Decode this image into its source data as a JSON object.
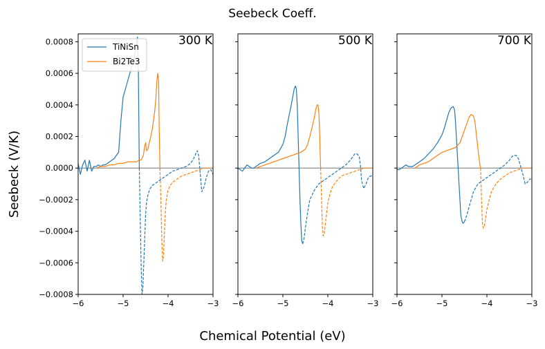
{
  "figure": {
    "suptitle": "Seebeck Coeff.",
    "xlabel": "Chemical Potential (eV)",
    "ylabel": "Seebeck (V/K)"
  },
  "colors": {
    "TiNiSn": "#1f77b4",
    "Bi2Te3": "#ff7f0e",
    "zero_line": "#808080"
  },
  "legend": {
    "placement": "upper-left",
    "entries": [
      "TiNiSn",
      "Bi2Te3"
    ]
  },
  "chart_data": [
    {
      "type": "line",
      "title": "300 K",
      "xlim": [
        -6,
        -3
      ],
      "ylim": [
        -0.0008,
        0.00085
      ],
      "xticks": [
        "−6",
        "−5",
        "−4",
        "−3"
      ],
      "yticks": [
        "−0.0008",
        "−0.0006",
        "−0.0004",
        "−0.0002",
        "0.0000",
        "0.0002",
        "0.0004",
        "0.0006",
        "0.0008"
      ],
      "series": [
        {
          "name": "TiNiSn",
          "style": "solid",
          "x": [
            -6.0,
            -5.95,
            -5.9,
            -5.85,
            -5.8,
            -5.75,
            -5.7,
            -5.65,
            -5.6,
            -5.55,
            -5.5,
            -5.45,
            -5.4,
            -5.35,
            -5.3,
            -5.25,
            -5.2,
            -5.15,
            -5.1,
            -5.05,
            -5.0,
            -4.95,
            -4.9,
            -4.85,
            -4.8,
            -4.75,
            -4.72,
            -4.7,
            -4.68,
            -4.66,
            -4.64
          ],
          "y": [
            3e-05,
            -4e-05,
            2e-05,
            5e-05,
            -2e-05,
            5e-05,
            -2e-05,
            1e-05,
            1e-05,
            2e-05,
            1e-05,
            2e-05,
            2e-05,
            3e-05,
            4e-05,
            5e-05,
            6e-05,
            8e-05,
            0.0001,
            0.0003,
            0.00045,
            0.0005,
            0.00055,
            0.0006,
            0.00065,
            0.0007,
            0.00075,
            0.0008,
            0.00083,
            0.0006,
            0.0
          ]
        },
        {
          "name": "TiNiSn",
          "style": "dashed",
          "x": [
            -4.64,
            -4.62,
            -4.6,
            -4.58,
            -4.56,
            -4.54,
            -4.52,
            -4.5,
            -4.48,
            -4.45,
            -4.4,
            -4.35,
            -4.3,
            -4.25,
            -4.2,
            -4.15,
            -4.1,
            -4.0,
            -3.9,
            -3.8,
            -3.7,
            -3.6,
            -3.5,
            -3.45,
            -3.4,
            -3.37,
            -3.35,
            -3.32,
            -3.28,
            -3.25,
            -3.2,
            -3.15,
            -3.1,
            -3.05,
            -3.0
          ],
          "y": [
            0.0,
            -0.0003,
            -0.0006,
            -0.0008,
            -0.00075,
            -0.0006,
            -0.00045,
            -0.0003,
            -0.00022,
            -0.00017,
            -0.00013,
            -0.00011,
            -0.0001,
            -9e-05,
            -8e-05,
            -7e-05,
            -6e-05,
            -4e-05,
            -2e-05,
            -1e-05,
            0.0,
            1e-05,
            3e-05,
            5e-05,
            8e-05,
            0.0001,
            0.00011,
            8e-05,
            -5e-05,
            -0.00015,
            -0.00012,
            -6e-05,
            -2e-05,
            -1e-05,
            -4e-05
          ]
        },
        {
          "name": "Bi2Te3",
          "style": "solid",
          "x": [
            -5.6,
            -5.5,
            -5.4,
            -5.3,
            -5.2,
            -5.1,
            -5.0,
            -4.9,
            -4.8,
            -4.7,
            -4.65,
            -4.6,
            -4.55,
            -4.52,
            -4.5,
            -4.48,
            -4.45,
            -4.42,
            -4.4,
            -4.35,
            -4.3,
            -4.27,
            -4.25,
            -4.23,
            -4.21,
            -4.2,
            -4.18
          ],
          "y": [
            0.0,
            1e-05,
            1e-05,
            2e-05,
            2e-05,
            3e-05,
            3e-05,
            4e-05,
            4e-05,
            4e-05,
            5e-05,
            5e-05,
            8e-05,
            0.00014,
            0.00016,
            0.00011,
            0.00012,
            0.00016,
            0.00018,
            0.00025,
            0.00035,
            0.00045,
            0.00055,
            0.0006,
            0.00055,
            0.0003,
            0.0
          ]
        },
        {
          "name": "Bi2Te3",
          "style": "dashed",
          "x": [
            -4.18,
            -4.16,
            -4.14,
            -4.12,
            -4.1,
            -4.08,
            -4.06,
            -4.04,
            -4.0,
            -3.95,
            -3.9,
            -3.8,
            -3.7,
            -3.6,
            -3.5,
            -3.4,
            -3.3,
            -3.2,
            -3.1,
            -3.0
          ],
          "y": [
            0.0,
            -0.0002,
            -0.00045,
            -0.00059,
            -0.00055,
            -0.0004,
            -0.00028,
            -0.0002,
            -0.00014,
            -0.00011,
            -9e-05,
            -7e-05,
            -5e-05,
            -4e-05,
            -3e-05,
            -2e-05,
            -1e-05,
            0.0,
            0.0,
            0.0
          ]
        }
      ]
    },
    {
      "type": "line",
      "title": "500 K",
      "xlim": [
        -6,
        -3
      ],
      "ylim": [
        -0.0008,
        0.00085
      ],
      "xticks": [
        "−6",
        "−5",
        "−4",
        "−3"
      ],
      "series": [
        {
          "name": "TiNiSn",
          "style": "solid",
          "x": [
            -6.0,
            -5.95,
            -5.9,
            -5.85,
            -5.8,
            -5.75,
            -5.7,
            -5.65,
            -5.6,
            -5.5,
            -5.4,
            -5.3,
            -5.2,
            -5.1,
            -5.0,
            -4.95,
            -4.9,
            -4.85,
            -4.8,
            -4.75,
            -4.72,
            -4.7,
            -4.68,
            -4.66,
            -4.64,
            -4.62,
            -4.6,
            -4.58,
            -4.56
          ],
          "y": [
            0.0,
            -1e-05,
            -2e-05,
            0.0,
            2e-05,
            1e-05,
            0.0,
            0.0,
            1e-05,
            3e-05,
            4e-05,
            6e-05,
            8e-05,
            0.0001,
            0.00015,
            0.0002,
            0.00028,
            0.00035,
            0.00042,
            0.0005,
            0.00052,
            0.0005,
            0.0004,
            0.0002,
            0.0,
            -0.0002,
            -0.00035,
            -0.00046,
            -0.00048
          ]
        },
        {
          "name": "TiNiSn",
          "style": "dashed",
          "x": [
            -4.56,
            -4.53,
            -4.5,
            -4.45,
            -4.4,
            -4.3,
            -4.2,
            -4.1,
            -4.0,
            -3.9,
            -3.8,
            -3.7,
            -3.6,
            -3.5,
            -3.45,
            -3.4,
            -3.35,
            -3.3,
            -3.27,
            -3.25,
            -3.2,
            -3.15,
            -3.1,
            -3.05,
            -3.0
          ],
          "y": [
            -0.00048,
            -0.00045,
            -0.00038,
            -0.00028,
            -0.0002,
            -0.00014,
            -0.0001,
            -8e-05,
            -6e-05,
            -4e-05,
            -2e-05,
            0.0,
            2e-05,
            5e-05,
            7e-05,
            9e-05,
            9e-05,
            7e-05,
            0.0,
            -8e-05,
            -0.00013,
            -0.0001,
            -6e-05,
            -5e-05,
            -5e-05
          ]
        },
        {
          "name": "Bi2Te3",
          "style": "solid",
          "x": [
            -5.6,
            -5.5,
            -5.4,
            -5.3,
            -5.2,
            -5.1,
            -5.0,
            -4.9,
            -4.8,
            -4.7,
            -4.6,
            -4.5,
            -4.45,
            -4.4,
            -4.35,
            -4.3,
            -4.27,
            -4.24,
            -4.22,
            -4.2,
            -4.19,
            -4.18,
            -4.17,
            -4.16
          ],
          "y": [
            0.0,
            1e-05,
            2e-05,
            3e-05,
            4e-05,
            5e-05,
            6e-05,
            7e-05,
            8e-05,
            9e-05,
            0.0001,
            0.00012,
            0.00015,
            0.0002,
            0.00026,
            0.00032,
            0.00037,
            0.0004,
            0.0004,
            0.00035,
            0.0003,
            0.0002,
            0.0001,
            0.0
          ]
        },
        {
          "name": "Bi2Te3",
          "style": "dashed",
          "x": [
            -4.16,
            -4.14,
            -4.12,
            -4.1,
            -4.08,
            -4.05,
            -4.0,
            -3.95,
            -3.9,
            -3.8,
            -3.7,
            -3.6,
            -3.5,
            -3.4,
            -3.3,
            -3.2,
            -3.1,
            -3.0
          ],
          "y": [
            0.0,
            -0.0002,
            -0.00038,
            -0.00043,
            -0.00042,
            -0.00034,
            -0.00022,
            -0.00016,
            -0.00012,
            -8e-05,
            -5e-05,
            -4e-05,
            -3e-05,
            -2e-05,
            -1e-05,
            0.0,
            0.0,
            0.0
          ]
        }
      ]
    },
    {
      "type": "line",
      "title": "700 K",
      "xlim": [
        -6,
        -3
      ],
      "ylim": [
        -0.0008,
        0.00085
      ],
      "xticks": [
        "−6",
        "−5",
        "−4",
        "−3"
      ],
      "series": [
        {
          "name": "TiNiSn",
          "style": "solid",
          "x": [
            -6.0,
            -5.95,
            -5.9,
            -5.85,
            -5.8,
            -5.75,
            -5.7,
            -5.65,
            -5.6,
            -5.5,
            -5.4,
            -5.3,
            -5.2,
            -5.1,
            -5.0,
            -4.95,
            -4.9,
            -4.85,
            -4.8,
            -4.75,
            -4.72,
            -4.7,
            -4.68,
            -4.66,
            -4.64,
            -4.62,
            -4.6,
            -4.58,
            -4.55,
            -4.53,
            -4.5
          ],
          "y": [
            -1e-05,
            -1e-05,
            0.0,
            1e-05,
            2e-05,
            1e-05,
            1e-05,
            1e-05,
            2e-05,
            4e-05,
            6e-05,
            9e-05,
            0.00012,
            0.00016,
            0.00021,
            0.00025,
            0.0003,
            0.00035,
            0.00038,
            0.00039,
            0.00037,
            0.0003,
            0.0002,
            0.0001,
            0.0,
            -0.0001,
            -0.0002,
            -0.0003,
            -0.00034,
            -0.00035,
            -0.00034
          ]
        },
        {
          "name": "TiNiSn",
          "style": "dashed",
          "x": [
            -4.5,
            -4.45,
            -4.4,
            -4.35,
            -4.3,
            -4.2,
            -4.1,
            -4.0,
            -3.9,
            -3.8,
            -3.7,
            -3.6,
            -3.5,
            -3.45,
            -3.4,
            -3.35,
            -3.3,
            -3.25,
            -3.2,
            -3.15,
            -3.1,
            -3.05,
            -3.0
          ],
          "y": [
            -0.00034,
            -0.0003,
            -0.00025,
            -0.0002,
            -0.00015,
            -0.0001,
            -8e-05,
            -6e-05,
            -4e-05,
            -2e-05,
            0.0,
            2e-05,
            5e-05,
            7e-05,
            8e-05,
            8e-05,
            6e-05,
            1e-05,
            -4e-05,
            -0.0001,
            -9e-05,
            -7e-05,
            -7e-05
          ]
        },
        {
          "name": "Bi2Te3",
          "style": "solid",
          "x": [
            -5.6,
            -5.5,
            -5.4,
            -5.3,
            -5.2,
            -5.1,
            -5.0,
            -4.9,
            -4.8,
            -4.7,
            -4.6,
            -4.55,
            -4.5,
            -4.45,
            -4.4,
            -4.35,
            -4.3,
            -4.27,
            -4.25,
            -4.23,
            -4.21,
            -4.19,
            -4.17,
            -4.15,
            -4.14
          ],
          "y": [
            0.0,
            2e-05,
            3e-05,
            4e-05,
            6e-05,
            8e-05,
            0.0001,
            0.00011,
            0.00012,
            0.00013,
            0.00016,
            0.0002,
            0.00024,
            0.00028,
            0.00032,
            0.00034,
            0.00033,
            0.0003,
            0.00025,
            0.0002,
            0.00015,
            0.0001,
            5e-05,
            1e-05,
            0.0
          ]
        },
        {
          "name": "Bi2Te3",
          "style": "dashed",
          "x": [
            -4.14,
            -4.12,
            -4.1,
            -4.08,
            -4.06,
            -4.04,
            -4.0,
            -3.95,
            -3.9,
            -3.8,
            -3.7,
            -3.6,
            -3.5,
            -3.4,
            -3.3,
            -3.2,
            -3.1,
            -3.0
          ],
          "y": [
            0.0,
            -0.0002,
            -0.00035,
            -0.00038,
            -0.00037,
            -0.00034,
            -0.00026,
            -0.0002,
            -0.00015,
            -0.0001,
            -7e-05,
            -5e-05,
            -3e-05,
            -2e-05,
            -1e-05,
            0.0,
            0.0,
            0.0
          ]
        }
      ]
    }
  ]
}
